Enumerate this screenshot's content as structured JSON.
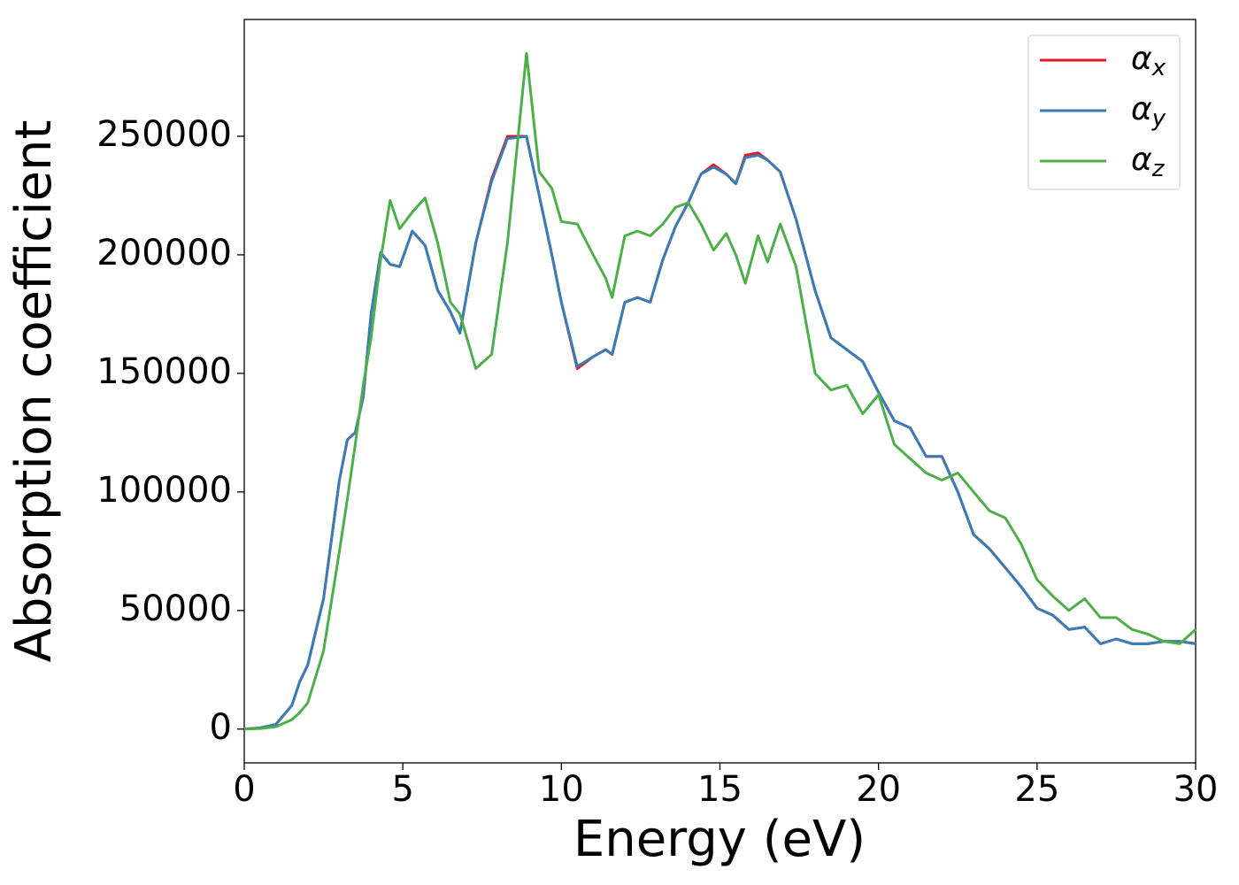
{
  "chart_data": {
    "type": "line",
    "xlabel": "Energy (eV)",
    "ylabel": "Absorption coefficient",
    "x": [
      0,
      0.5,
      1,
      1.5,
      1.75,
      2,
      2.5,
      3,
      3.25,
      3.5,
      3.75,
      4,
      4.3,
      4.6,
      4.9,
      5.3,
      5.7,
      6.1,
      6.5,
      6.8,
      7.3,
      7.8,
      8.3,
      8.9,
      9.3,
      9.7,
      10,
      10.5,
      11,
      11.4,
      11.6,
      12,
      12.4,
      12.8,
      13.2,
      13.6,
      14,
      14.4,
      14.8,
      15.2,
      15.5,
      15.8,
      16.2,
      16.5,
      16.9,
      17.4,
      18,
      18.5,
      19,
      19.5,
      20,
      20.5,
      21,
      21.5,
      22,
      22.5,
      23,
      23.5,
      24,
      24.5,
      25,
      25.5,
      26,
      26.5,
      27,
      27.5,
      28,
      28.5,
      29,
      29.5,
      30
    ],
    "series": [
      {
        "name": "αx",
        "color": "#e41a1c",
        "values": [
          0,
          500,
          2000,
          10000,
          20000,
          27000,
          55000,
          105000,
          122000,
          125000,
          140000,
          175000,
          201000,
          196000,
          195000,
          210000,
          204000,
          185000,
          176000,
          167000,
          205000,
          232000,
          250000,
          250000,
          225000,
          200000,
          180000,
          152000,
          157000,
          160000,
          158000,
          180000,
          182000,
          180000,
          198000,
          212000,
          222000,
          234000,
          238000,
          234000,
          230000,
          242000,
          243000,
          240000,
          235000,
          215000,
          185000,
          165000,
          160000,
          155000,
          142000,
          130000,
          127000,
          115000,
          115000,
          100000,
          82000,
          76000,
          68000,
          60000,
          51000,
          48000,
          42000,
          43000,
          36000,
          38000,
          36000,
          36000,
          37000,
          37000,
          36000
        ]
      },
      {
        "name": "αy",
        "color": "#377eb8",
        "values": [
          0,
          500,
          2000,
          10000,
          20000,
          27000,
          55000,
          105000,
          122000,
          125000,
          140000,
          175000,
          201000,
          196000,
          195000,
          210000,
          204000,
          185000,
          176000,
          167000,
          205000,
          231000,
          249000,
          250000,
          225000,
          200000,
          180000,
          153000,
          157000,
          160000,
          158000,
          180000,
          182000,
          180000,
          198000,
          212000,
          222000,
          234000,
          237000,
          234000,
          230000,
          241000,
          242000,
          240000,
          235000,
          215000,
          185000,
          165000,
          160000,
          155000,
          142000,
          130000,
          127000,
          115000,
          115000,
          100000,
          82000,
          76000,
          68000,
          60000,
          51000,
          48000,
          42000,
          43000,
          36000,
          38000,
          36000,
          36000,
          37000,
          37000,
          36000
        ]
      },
      {
        "name": "αz",
        "color": "#4daf4a",
        "values": [
          0,
          200,
          1000,
          4000,
          7000,
          11000,
          33000,
          75000,
          97000,
          120000,
          145000,
          165000,
          198000,
          223000,
          211000,
          218000,
          224000,
          205000,
          180000,
          175000,
          152000,
          158000,
          205000,
          285000,
          235000,
          228000,
          214000,
          213000,
          200000,
          190000,
          182000,
          208000,
          210000,
          208000,
          213000,
          220000,
          222000,
          213000,
          202000,
          209000,
          200000,
          188000,
          208000,
          197000,
          213000,
          195000,
          150000,
          143000,
          145000,
          133000,
          141000,
          120000,
          114000,
          108000,
          105000,
          108000,
          100000,
          92000,
          89000,
          78000,
          63000,
          56000,
          50000,
          55000,
          47000,
          47000,
          42000,
          40000,
          37000,
          36000,
          42000
        ]
      }
    ],
    "xlim": [
      0,
      30
    ],
    "xticks": [
      0,
      5,
      10,
      15,
      20,
      25,
      30
    ],
    "ylim": [
      -14250,
      299250
    ],
    "yticks": [
      0,
      50000,
      100000,
      150000,
      200000,
      250000
    ],
    "grid": false,
    "legend": "upper right"
  }
}
